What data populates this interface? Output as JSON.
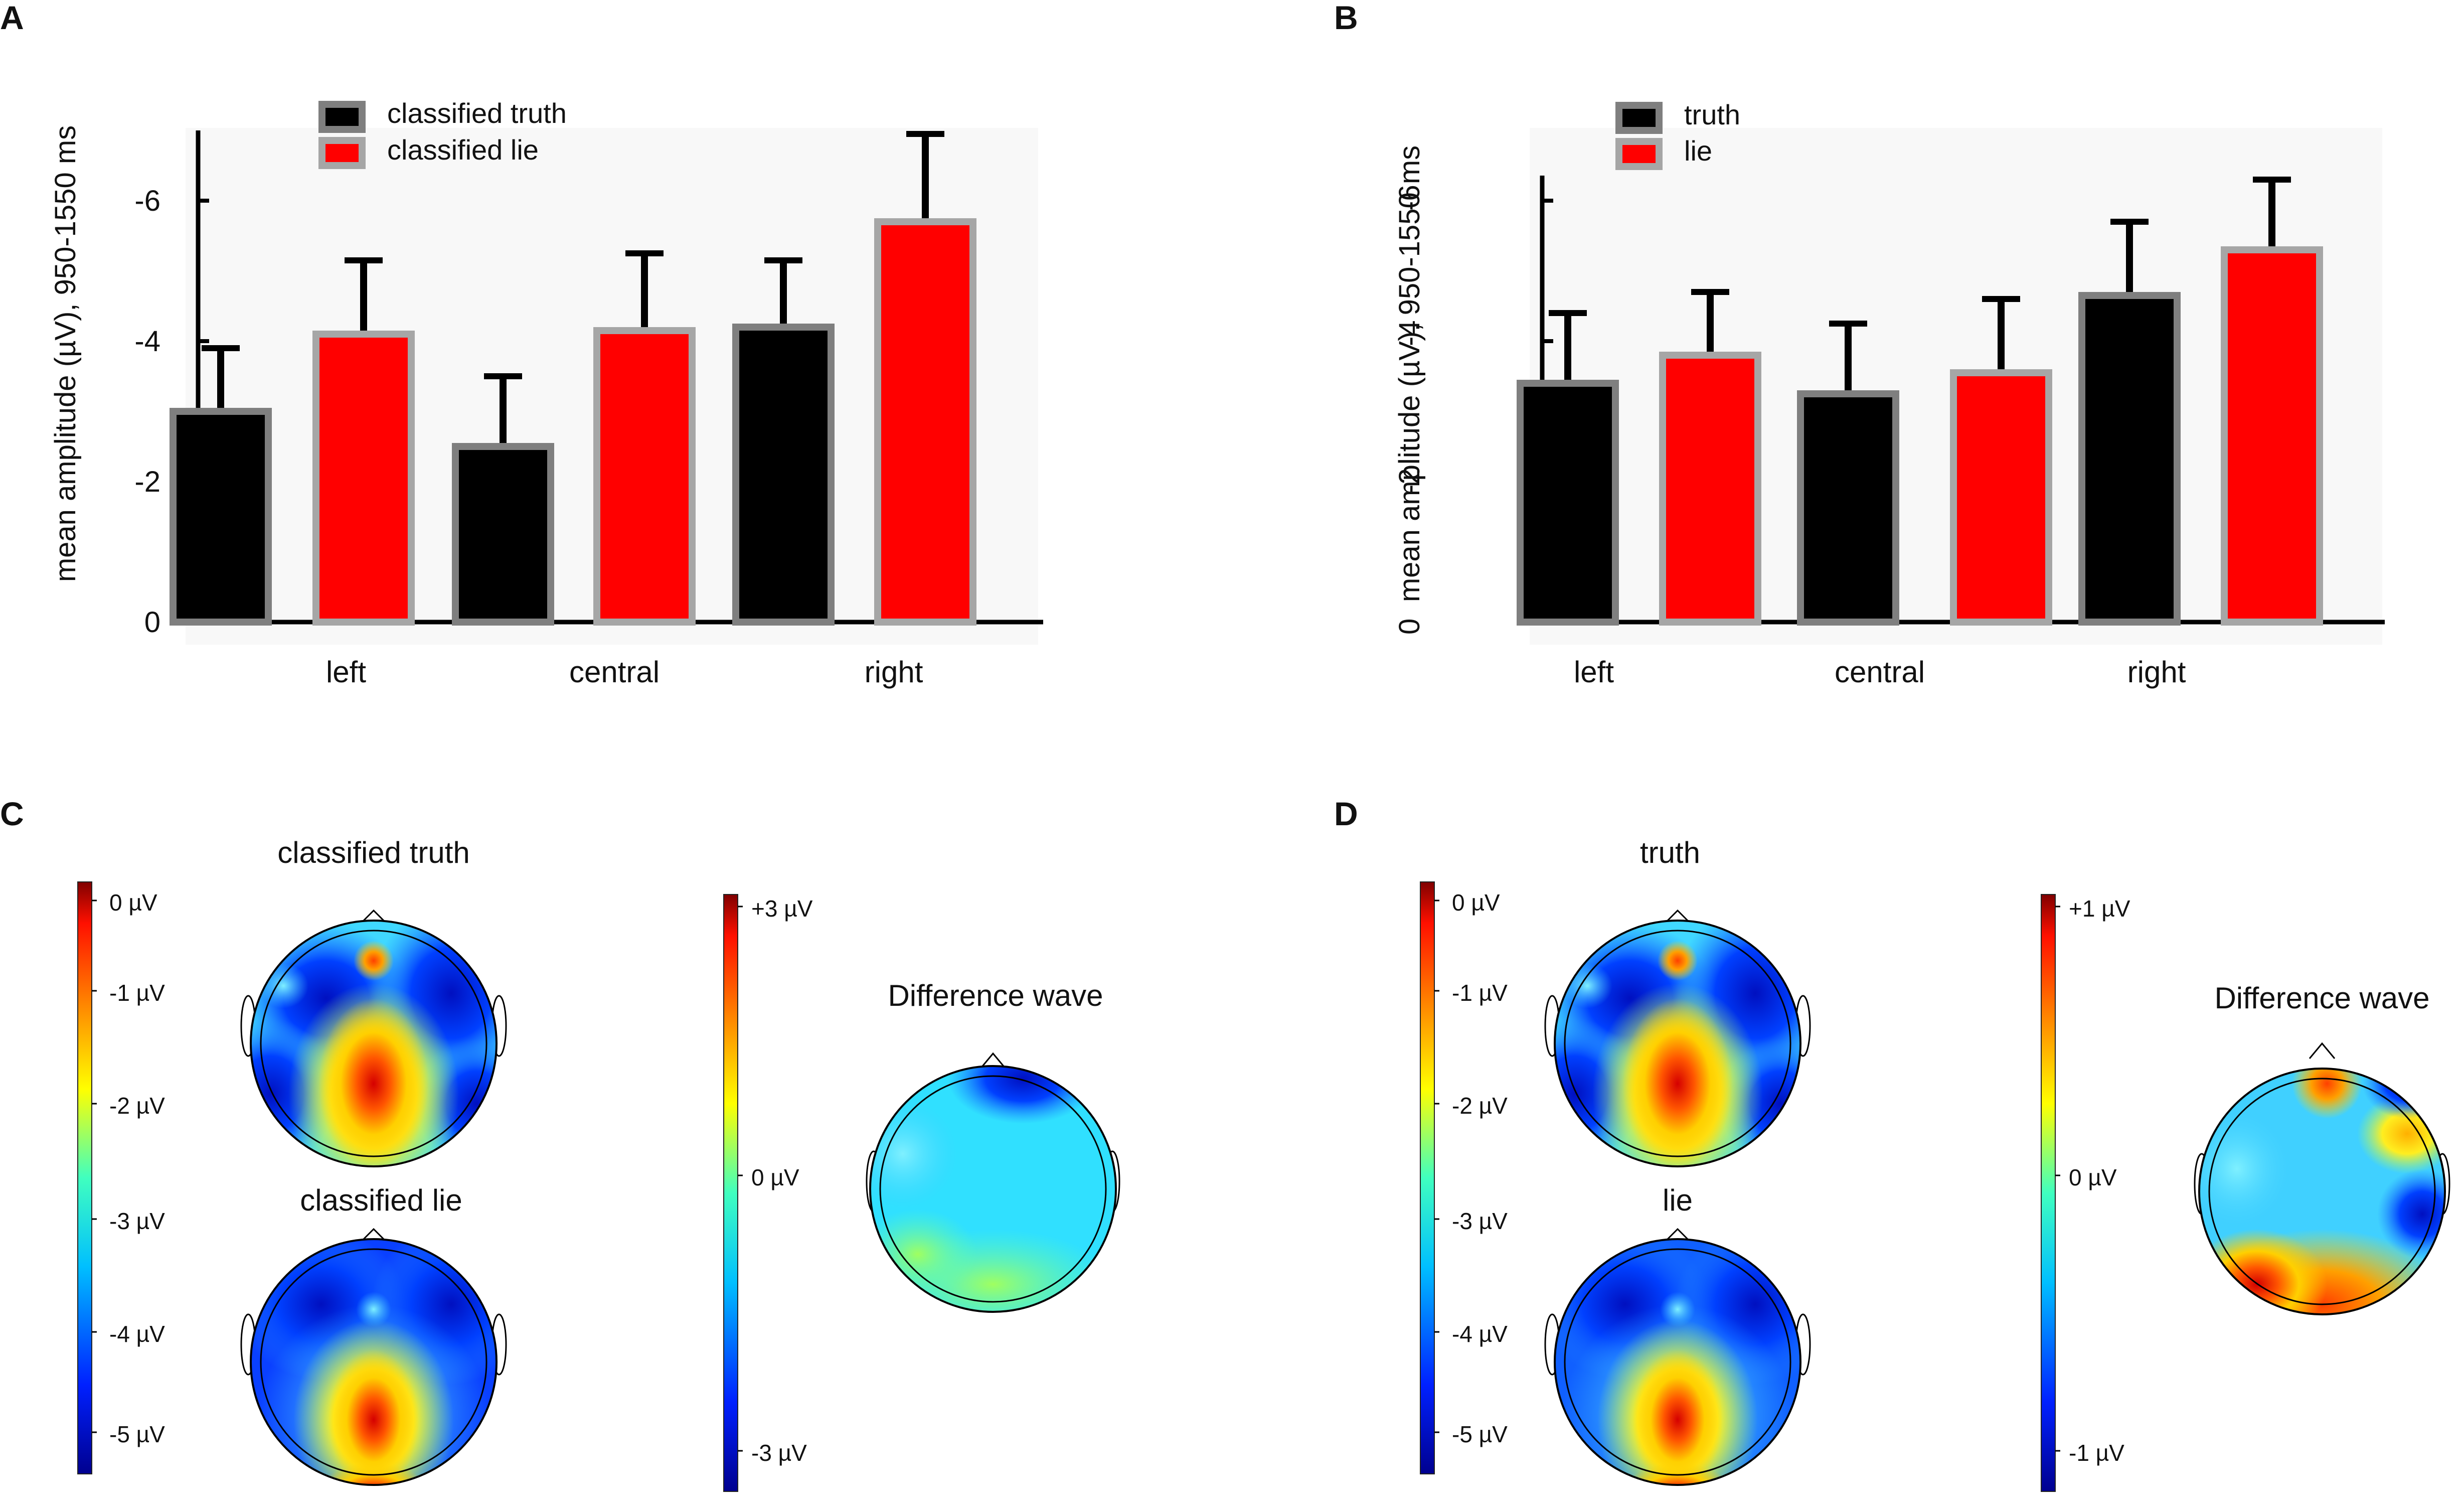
{
  "panels": {
    "A": {
      "letter": "A"
    },
    "B": {
      "letter": "B"
    },
    "C": {
      "letter": "C",
      "map_title_top": "classified truth",
      "map_title_bottom": "classified lie",
      "diff_title": "Difference wave",
      "scale1_ticks": [
        "0 µV",
        "-1 µV",
        "-2 µV",
        "-3 µV",
        "-4 µV",
        "-5 µV"
      ],
      "scale2_ticks": [
        "+3 µV",
        "0 µV",
        "-3 µV"
      ]
    },
    "D": {
      "letter": "D",
      "map_title_top": "truth",
      "map_title_bottom": "lie",
      "diff_title": "Difference wave",
      "scale1_ticks": [
        "0 µV",
        "-1 µV",
        "-2 µV",
        "-3 µV",
        "-4 µV",
        "-5 µV"
      ],
      "scale2_ticks": [
        "+1 µV",
        "0 µV",
        "-1 µV"
      ]
    }
  },
  "chart_data": [
    {
      "type": "bar",
      "panel": "A",
      "categories": [
        "left",
        "central",
        "right"
      ],
      "series": [
        {
          "name": "classified truth",
          "color": "#000000",
          "values": [
            -3.0,
            -2.5,
            -4.2
          ],
          "errors": [
            0.9,
            1.0,
            0.95
          ]
        },
        {
          "name": "classified lie",
          "color": "#ff0000",
          "values": [
            -4.1,
            -4.15,
            -5.7
          ],
          "errors": [
            1.05,
            1.1,
            1.25
          ]
        }
      ],
      "ylabel": "mean amplitude (µV), 950-1550 ms",
      "yticks": [
        0,
        -2,
        -4,
        -6
      ],
      "ytick_labels": [
        "0",
        "-2",
        "-4",
        "-6"
      ],
      "ylim": [
        0,
        -7
      ],
      "legend": "top-center"
    },
    {
      "type": "bar",
      "panel": "B",
      "categories": [
        "left",
        "central",
        "right"
      ],
      "series": [
        {
          "name": "truth",
          "color": "#000000",
          "values": [
            -3.4,
            -3.25,
            -4.65
          ],
          "errors": [
            1.0,
            1.0,
            1.05
          ]
        },
        {
          "name": "lie",
          "color": "#ff0000",
          "values": [
            -3.8,
            -3.55,
            -5.3
          ],
          "errors": [
            0.9,
            1.05,
            1.0
          ]
        }
      ],
      "ylabel": "mean amplitude (µV), 950-1550 ms",
      "yticks": [
        0,
        -2,
        -4,
        -6
      ],
      "ytick_labels": [
        "",
        "",
        "",
        ""
      ],
      "ylim": [
        0,
        -6.3
      ],
      "legend": "top-left"
    }
  ]
}
